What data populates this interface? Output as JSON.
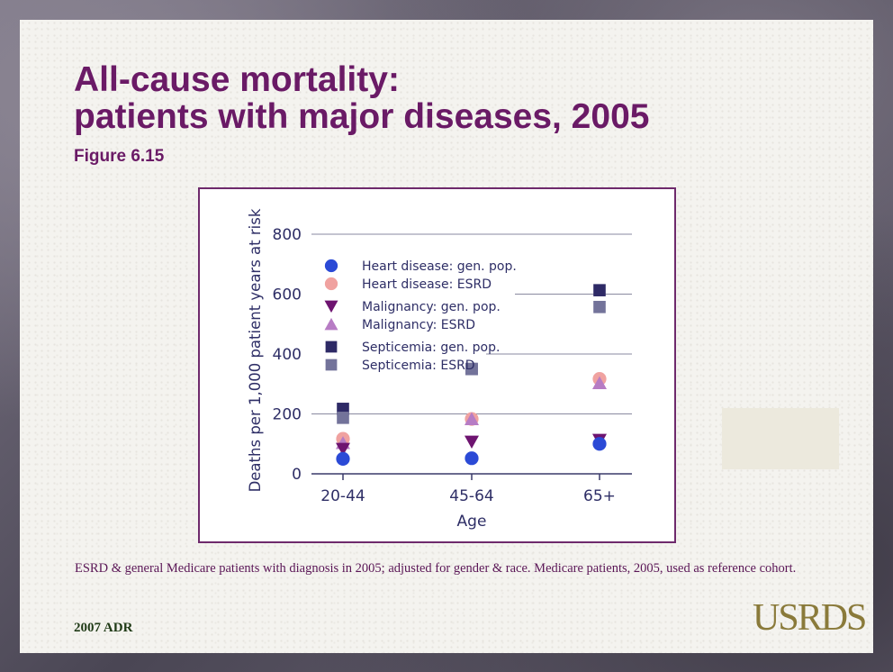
{
  "slide": {
    "title_line1": "All-cause mortality:",
    "title_line2": "patients with major diseases, 2005",
    "figure_number": "Figure 6.15",
    "caption": "ESRD & general Medicare patients with diagnosis in 2005; adjusted for gender & race. Medicare patients, 2005, used as reference cohort.",
    "footer_left": "2007 ADR",
    "logo_text": "USRDS"
  },
  "colors": {
    "title": "#6a1a66",
    "heart_gen": "#2b4ad6",
    "heart_esrd": "#f0a2a0",
    "malig_gen": "#6e1470",
    "malig_esrd": "#b77cc4",
    "septi_gen": "#2e2a66",
    "septi_esrd": "#73739a"
  },
  "chart_data": {
    "type": "scatter",
    "title": "",
    "xlabel": "Age",
    "ylabel": "Deaths per 1,000 patient years at risk",
    "categories": [
      "20-44",
      "45-64",
      "65+"
    ],
    "ylim": [
      0,
      800
    ],
    "yticks": [
      0,
      200,
      400,
      600,
      800
    ],
    "grid": true,
    "legend_position": "top-left",
    "series": [
      {
        "name": "Heart disease: gen. pop.",
        "marker": "circle",
        "color": "#2b4ad6",
        "values": [
          50,
          52,
          100
        ]
      },
      {
        "name": "Heart disease: ESRD",
        "marker": "circle",
        "color": "#f0a2a0",
        "values": [
          117,
          183,
          317
        ]
      },
      {
        "name": "Malignancy: gen. pop.",
        "marker": "triangle-down",
        "color": "#6e1470",
        "values": [
          83,
          107,
          113
        ]
      },
      {
        "name": "Malignancy: ESRD",
        "marker": "triangle-up",
        "color": "#b77cc4",
        "values": [
          103,
          183,
          303
        ]
      },
      {
        "name": "Septicemia: gen. pop.",
        "marker": "square",
        "color": "#2e2a66",
        "values": [
          217,
          350,
          613
        ]
      },
      {
        "name": "Septicemia: ESRD",
        "marker": "square",
        "color": "#73739a",
        "values": [
          187,
          350,
          557
        ]
      }
    ]
  }
}
